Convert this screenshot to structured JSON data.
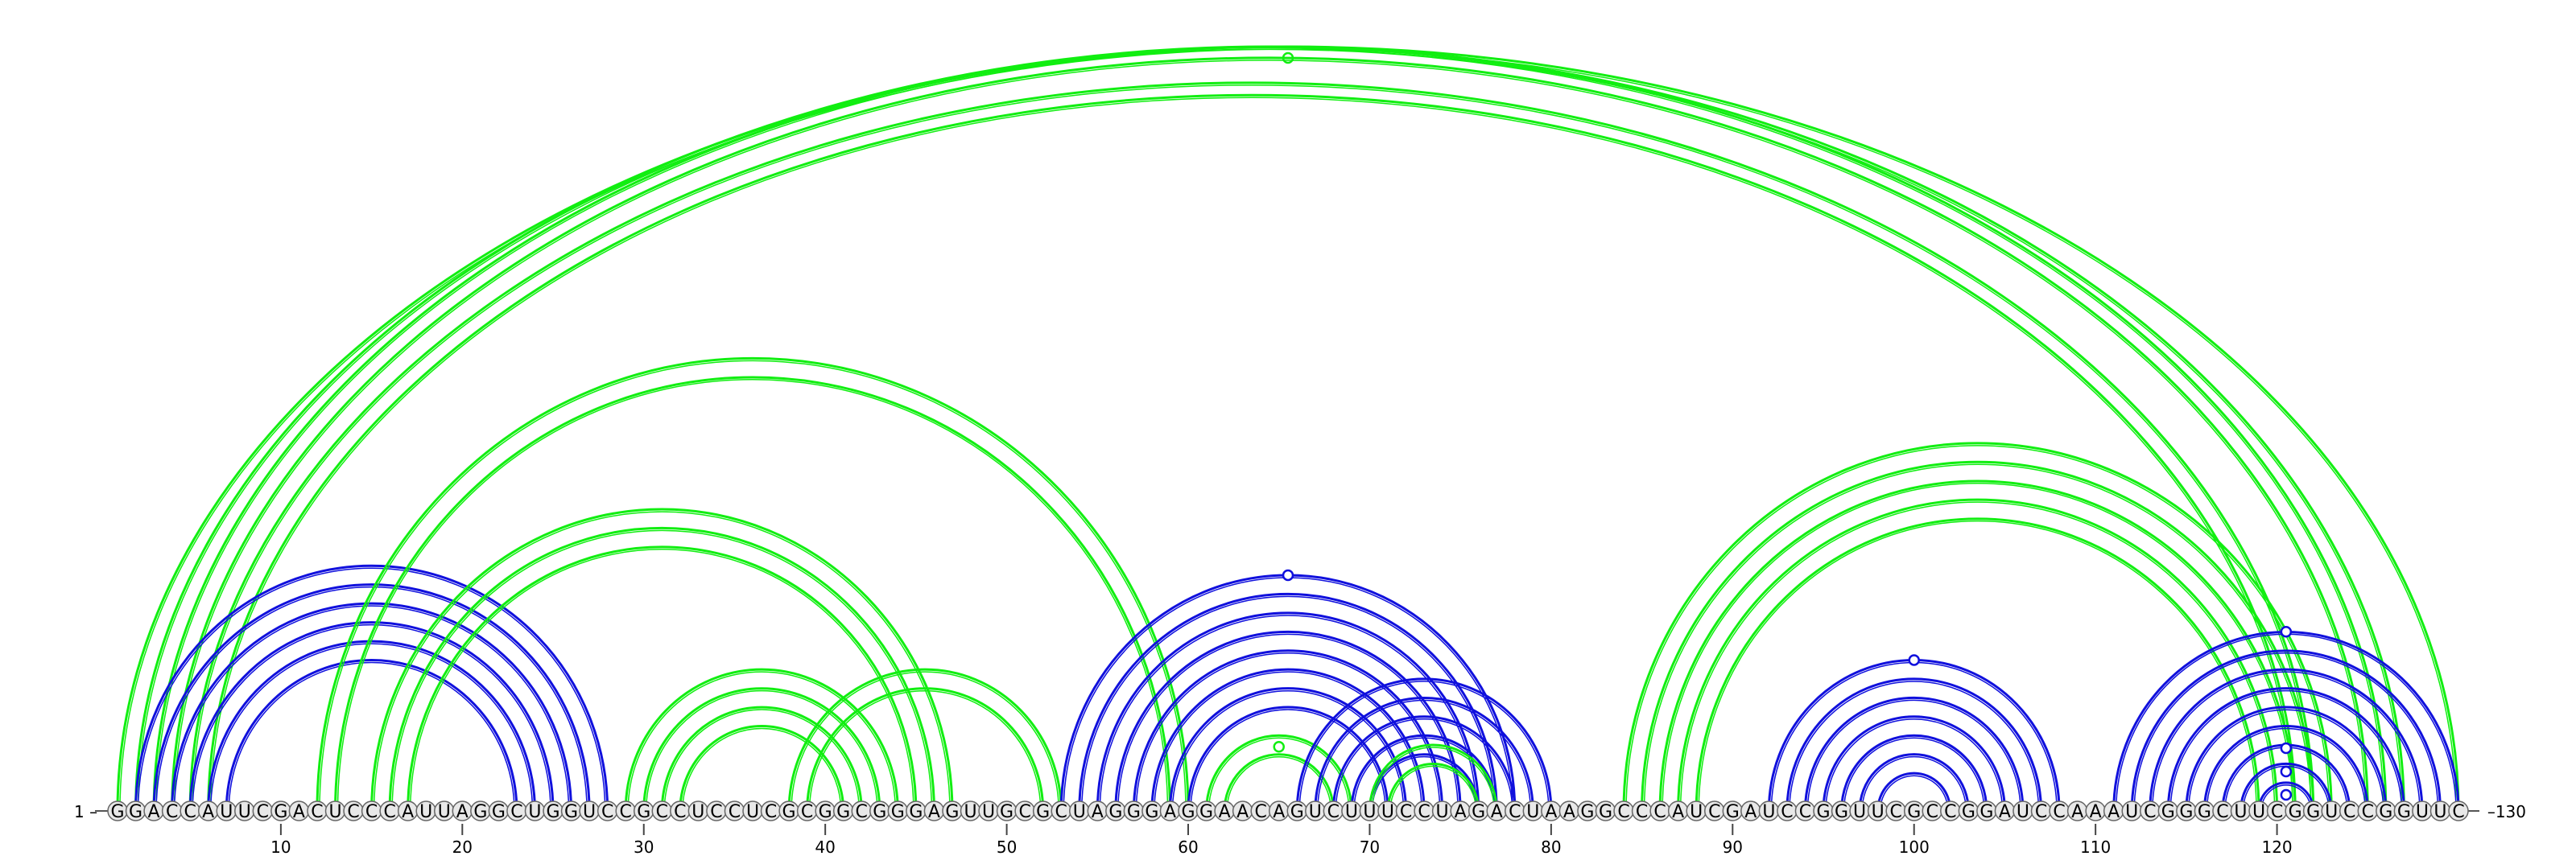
{
  "sequence": "GGACCAUUCGACUCCCAUUAGGCUGGUCCGCCUCCUCGCGGCGGGAGUUGCGCUAGGGAGGAACAGUCUUUCCUAGACUAAGGCCCAUCGAUCCGGUUCGCCGGAUCCAAAUCGGGCUUCGGUCCGGUUC",
  "start_label": "1",
  "end_label": "130",
  "tick_labels": [
    "10",
    "20",
    "30",
    "40",
    "50",
    "60",
    "70",
    "80",
    "90",
    "100",
    "110",
    "120"
  ],
  "colors": {
    "blue": "#1010dd",
    "green": "#11ee11",
    "base_fill": "#e8e8e8",
    "base_stroke": "#666666"
  },
  "arc_groups": [
    {
      "color": "green",
      "pairs": [
        [
          1,
          130
        ],
        [
          2,
          127
        ],
        [
          3,
          126
        ],
        [
          4,
          125
        ],
        [
          5,
          122
        ],
        [
          6,
          121
        ]
      ],
      "hollow_mark": true
    },
    {
      "color": "blue",
      "pairs": [
        [
          2,
          28
        ],
        [
          3,
          27
        ],
        [
          4,
          26
        ],
        [
          5,
          25
        ],
        [
          6,
          24
        ],
        [
          7,
          23
        ]
      ]
    },
    {
      "color": "green",
      "pairs": [
        [
          12,
          60
        ],
        [
          13,
          59
        ],
        [
          15,
          47
        ],
        [
          16,
          46
        ],
        [
          17,
          45
        ]
      ]
    },
    {
      "color": "green",
      "pairs": [
        [
          29,
          44
        ],
        [
          30,
          43
        ],
        [
          31,
          42
        ],
        [
          32,
          41
        ]
      ]
    },
    {
      "color": "green",
      "pairs": [
        [
          38,
          53
        ],
        [
          39,
          52
        ]
      ]
    },
    {
      "color": "blue",
      "pairs": [
        [
          53,
          78
        ],
        [
          54,
          77
        ],
        [
          55,
          76
        ],
        [
          56,
          75
        ],
        [
          57,
          74
        ],
        [
          58,
          73
        ],
        [
          59,
          72
        ],
        [
          60,
          71
        ]
      ],
      "hollow_mark": true
    },
    {
      "color": "green",
      "pairs": [
        [
          61,
          69
        ],
        [
          62,
          68
        ]
      ],
      "hollow_mark": true
    },
    {
      "color": "blue",
      "pairs": [
        [
          66,
          80
        ],
        [
          67,
          79
        ],
        [
          68,
          78
        ],
        [
          69,
          77
        ],
        [
          70,
          76
        ]
      ]
    },
    {
      "color": "green",
      "pairs": [
        [
          70,
          77
        ],
        [
          71,
          76
        ]
      ]
    },
    {
      "color": "green",
      "pairs": [
        [
          84,
          123
        ],
        [
          85,
          122
        ],
        [
          86,
          121
        ],
        [
          87,
          120
        ],
        [
          88,
          119
        ]
      ]
    },
    {
      "color": "blue",
      "pairs": [
        [
          92,
          108
        ],
        [
          93,
          107
        ],
        [
          94,
          106
        ],
        [
          95,
          105
        ],
        [
          96,
          104
        ],
        [
          97,
          103
        ],
        [
          98,
          102
        ]
      ],
      "hollow_mark": true
    },
    {
      "color": "blue",
      "pairs": [
        [
          111,
          130
        ],
        [
          112,
          129
        ],
        [
          113,
          128
        ],
        [
          114,
          127
        ],
        [
          115,
          126
        ],
        [
          116,
          125
        ],
        [
          117,
          124
        ],
        [
          118,
          123
        ],
        [
          119,
          122
        ]
      ],
      "hollow_mark": true,
      "extra_marks": 3
    }
  ]
}
